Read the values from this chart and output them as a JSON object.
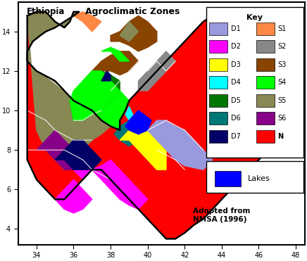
{
  "title": "Agroclimatic Zones",
  "title_left": "Ethiopia",
  "subtitle": "Adopted from\nNMSA (1996)",
  "legend_title": "Key",
  "legend_left": [
    {
      "label": "D1",
      "color": "#9999DD"
    },
    {
      "label": "D2",
      "color": "#FF00FF"
    },
    {
      "label": "D3",
      "color": "#FFFF00"
    },
    {
      "label": "D4",
      "color": "#00FFFF"
    },
    {
      "label": "D5",
      "color": "#007700"
    },
    {
      "label": "D6",
      "color": "#007777"
    },
    {
      "label": "D7",
      "color": "#000066"
    }
  ],
  "legend_right": [
    {
      "label": "S1",
      "color": "#FF8844"
    },
    {
      "label": "S2",
      "color": "#888888"
    },
    {
      "label": "S3",
      "color": "#884400"
    },
    {
      "label": "S4",
      "color": "#00FF00"
    },
    {
      "label": "S5",
      "color": "#888855"
    },
    {
      "label": "S6",
      "color": "#880088"
    },
    {
      "label": "N",
      "color": "#FF0000"
    }
  ],
  "lakes_color": "#0000FF",
  "xlim": [
    33.0,
    48.5
  ],
  "ylim": [
    3.2,
    15.5
  ],
  "xticks": [
    34,
    36,
    38,
    40,
    42,
    44,
    46,
    48
  ],
  "yticks": [
    4,
    6,
    8,
    10,
    12,
    14
  ],
  "figsize": [
    4.36,
    3.71
  ],
  "dpi": 100,
  "ethiopia_x": [
    33.5,
    34.0,
    34.5,
    35.0,
    35.5,
    35.8,
    36.0,
    36.3,
    36.0,
    35.5,
    35.0,
    34.5,
    34.2,
    33.8,
    33.5,
    33.5,
    34.0,
    35.0,
    35.5,
    36.0,
    37.0,
    37.5,
    38.0,
    38.5,
    38.5,
    38.8,
    39.0,
    39.5,
    40.0,
    40.5,
    41.0,
    41.5,
    42.0,
    42.5,
    43.0,
    43.5,
    44.0,
    44.5,
    44.8,
    45.0,
    45.5,
    46.0,
    46.5,
    47.0,
    47.5,
    47.8,
    47.5,
    47.0,
    46.5,
    46.0,
    45.5,
    45.0,
    44.5,
    44.0,
    43.5,
    43.0,
    42.5,
    42.0,
    41.5,
    41.0,
    40.5,
    40.0,
    39.5,
    39.0,
    38.5,
    38.0,
    37.5,
    37.0,
    36.5,
    36.0,
    35.5,
    35.0,
    34.5,
    34.0,
    33.5
  ],
  "ethiopia_y": [
    14.8,
    15.0,
    15.0,
    14.5,
    14.2,
    14.5,
    15.0,
    15.0,
    14.8,
    14.5,
    14.2,
    14.0,
    13.8,
    13.5,
    13.0,
    12.5,
    12.0,
    11.5,
    11.0,
    10.5,
    10.0,
    9.5,
    9.2,
    9.0,
    9.5,
    10.0,
    10.5,
    11.0,
    11.5,
    12.0,
    12.5,
    13.0,
    13.5,
    14.0,
    14.5,
    14.8,
    14.8,
    14.5,
    14.2,
    14.0,
    13.5,
    13.0,
    12.5,
    12.0,
    11.0,
    10.0,
    9.0,
    8.5,
    8.0,
    7.5,
    7.0,
    6.5,
    6.0,
    5.5,
    5.0,
    4.5,
    4.2,
    3.8,
    3.5,
    3.5,
    4.0,
    4.5,
    5.0,
    5.5,
    6.0,
    6.5,
    7.0,
    7.0,
    6.5,
    6.0,
    5.5,
    5.5,
    6.0,
    6.5,
    7.5
  ],
  "zones": {
    "N_east": {
      "color": "#FF0000",
      "x": [
        41.5,
        42.0,
        42.5,
        43.0,
        43.5,
        44.0,
        44.5,
        44.8,
        45.0,
        45.5,
        46.0,
        46.5,
        47.0,
        47.5,
        47.8,
        47.5,
        47.0,
        46.5,
        46.0,
        45.5,
        45.0,
        44.5,
        44.0,
        43.5,
        43.0,
        42.5,
        42.0,
        41.5
      ],
      "y": [
        12.5,
        13.0,
        13.5,
        14.0,
        14.5,
        14.8,
        14.5,
        14.2,
        14.0,
        13.5,
        13.0,
        12.5,
        12.0,
        11.0,
        10.0,
        9.0,
        8.5,
        8.0,
        7.5,
        7.0,
        6.5,
        6.0,
        5.5,
        5.0,
        4.5,
        4.2,
        3.8,
        12.5
      ]
    },
    "S5_west": {
      "color": "#888855",
      "x": [
        33.5,
        34.0,
        34.5,
        35.0,
        35.5,
        35.8,
        36.0,
        36.3,
        36.0,
        35.5,
        35.0,
        34.5,
        34.2,
        33.8,
        33.5,
        33.5,
        34.0,
        35.0,
        35.5,
        36.0,
        37.0,
        37.5,
        38.0,
        37.5,
        37.0,
        36.5,
        36.0,
        35.5,
        35.0,
        34.5,
        34.0,
        33.5
      ],
      "y": [
        14.8,
        15.0,
        15.0,
        14.5,
        14.2,
        14.5,
        15.0,
        15.0,
        14.8,
        14.5,
        14.2,
        14.0,
        13.8,
        13.5,
        13.0,
        12.5,
        12.0,
        11.5,
        11.0,
        10.5,
        10.0,
        9.5,
        9.2,
        8.8,
        8.5,
        8.0,
        7.5,
        7.0,
        7.5,
        8.0,
        9.0,
        14.8
      ]
    },
    "S4_green": {
      "color": "#00FF00",
      "x": [
        37.0,
        37.5,
        38.0,
        38.5,
        38.5,
        38.8,
        39.0,
        38.5,
        38.0,
        37.5,
        37.2,
        37.0,
        36.8,
        37.0
      ],
      "y": [
        10.0,
        9.5,
        9.2,
        9.0,
        9.5,
        10.0,
        10.5,
        11.0,
        11.5,
        12.0,
        11.5,
        11.0,
        10.5,
        10.0
      ]
    },
    "S3_brown": {
      "color": "#884400",
      "x": [
        37.0,
        37.5,
        38.0,
        38.5,
        39.0,
        39.5,
        39.0,
        38.5,
        38.0,
        37.5,
        37.0,
        36.8,
        37.0
      ],
      "y": [
        12.0,
        12.5,
        12.8,
        13.0,
        13.0,
        12.5,
        12.0,
        11.8,
        12.0,
        12.0,
        11.5,
        11.0,
        12.0
      ]
    },
    "S2_gray": {
      "color": "#888888",
      "x": [
        39.5,
        40.0,
        40.5,
        41.0,
        41.5,
        41.0,
        40.5,
        40.0,
        39.5,
        39.5
      ],
      "y": [
        11.5,
        12.0,
        12.5,
        13.0,
        12.5,
        12.0,
        11.5,
        11.0,
        11.0,
        11.5
      ]
    },
    "S1_orange": {
      "color": "#FF8844",
      "x": [
        36.0,
        36.5,
        37.0,
        37.5,
        37.0,
        36.5,
        36.0
      ],
      "y": [
        14.8,
        15.0,
        14.8,
        14.5,
        14.0,
        14.5,
        14.8
      ]
    },
    "S4b_green2": {
      "color": "#00FF00",
      "x": [
        37.5,
        38.0,
        38.5,
        39.0,
        38.5,
        38.0,
        37.5
      ],
      "y": [
        13.0,
        13.2,
        13.0,
        12.5,
        12.5,
        13.0,
        13.0
      ]
    },
    "S3b_brown2": {
      "color": "#884400",
      "x": [
        38.0,
        38.5,
        39.0,
        39.5,
        40.0,
        40.5,
        40.5,
        40.0,
        39.5,
        39.0,
        38.5,
        38.0,
        38.0
      ],
      "y": [
        13.5,
        13.5,
        13.3,
        13.0,
        13.2,
        13.5,
        14.0,
        14.5,
        14.8,
        14.5,
        14.0,
        13.8,
        13.5
      ]
    },
    "S5b_khaki": {
      "color": "#888855",
      "x": [
        38.5,
        39.0,
        39.5,
        39.0,
        38.5
      ],
      "y": [
        13.8,
        13.5,
        14.0,
        14.5,
        13.8
      ]
    },
    "D5_dkgreen": {
      "color": "#007700",
      "x": [
        36.5,
        37.0,
        37.5,
        38.0,
        38.5,
        38.5,
        38.0,
        37.5,
        37.0,
        36.5,
        36.0,
        35.8,
        36.5
      ],
      "y": [
        11.5,
        12.0,
        12.0,
        11.8,
        11.5,
        11.0,
        10.5,
        10.0,
        9.8,
        9.5,
        9.5,
        10.5,
        11.5
      ]
    },
    "S4c_green3": {
      "color": "#00FF00",
      "x": [
        36.0,
        36.5,
        37.0,
        37.5,
        38.0,
        38.5,
        38.0,
        37.5,
        37.0,
        36.5,
        36.0,
        35.8,
        36.0
      ],
      "y": [
        9.5,
        9.5,
        9.8,
        10.0,
        10.5,
        11.0,
        11.5,
        12.0,
        12.0,
        11.5,
        11.0,
        10.5,
        9.5
      ]
    },
    "D7_dkblue": {
      "color": "#000066",
      "x": [
        37.5,
        38.0,
        38.0,
        37.8,
        37.5
      ],
      "y": [
        11.5,
        11.5,
        11.8,
        12.0,
        11.5
      ]
    },
    "D4_cyan": {
      "color": "#00FFFF",
      "x": [
        38.8,
        39.0,
        39.2,
        39.0,
        38.8
      ],
      "y": [
        9.8,
        9.5,
        9.8,
        10.2,
        9.8
      ]
    },
    "D6_teal": {
      "color": "#007777",
      "x": [
        38.5,
        39.0,
        39.5,
        40.0,
        39.5,
        39.0,
        38.5,
        38.2,
        38.5
      ],
      "y": [
        8.5,
        8.2,
        8.5,
        8.8,
        9.2,
        9.5,
        9.2,
        8.8,
        8.5
      ]
    },
    "D3_yellow": {
      "color": "#FFFF00",
      "x": [
        39.0,
        39.5,
        40.0,
        40.5,
        41.0,
        41.0,
        40.5,
        40.0,
        39.5,
        39.0,
        38.5,
        39.0
      ],
      "y": [
        8.5,
        8.0,
        7.5,
        7.0,
        7.0,
        8.0,
        8.5,
        9.0,
        9.5,
        9.0,
        8.5,
        8.5
      ]
    },
    "D1_ltblue": {
      "color": "#9999DD",
      "x": [
        40.0,
        40.5,
        41.0,
        41.5,
        42.0,
        43.0,
        43.5,
        43.0,
        42.5,
        42.0,
        41.5,
        41.0,
        40.5,
        40.0,
        40.0
      ],
      "y": [
        9.0,
        8.5,
        8.0,
        7.5,
        7.2,
        7.0,
        7.5,
        8.0,
        8.5,
        9.0,
        9.2,
        9.5,
        9.5,
        9.0,
        9.0
      ]
    },
    "D2_magenta": {
      "color": "#FF00FF",
      "x": [
        36.5,
        37.0,
        37.5,
        38.0,
        38.5,
        39.0,
        39.5,
        40.0,
        39.5,
        39.0,
        38.5,
        38.0,
        37.5,
        37.0,
        36.5,
        36.0,
        36.5
      ],
      "y": [
        7.5,
        7.0,
        6.5,
        6.0,
        5.5,
        5.2,
        5.0,
        5.5,
        6.0,
        6.5,
        7.0,
        7.5,
        7.2,
        7.0,
        6.5,
        7.0,
        7.5
      ]
    },
    "S6_purple": {
      "color": "#880088",
      "x": [
        34.5,
        35.0,
        35.5,
        36.0,
        36.5,
        36.0,
        35.5,
        35.0,
        34.5,
        34.0,
        34.5
      ],
      "y": [
        8.0,
        7.5,
        7.0,
        7.0,
        7.5,
        8.0,
        8.5,
        9.0,
        8.5,
        8.0,
        8.0
      ]
    },
    "D2b_magenta2": {
      "color": "#FF00FF",
      "x": [
        35.0,
        35.5,
        36.0,
        36.5,
        37.0,
        36.5,
        36.0,
        35.5,
        35.0
      ],
      "y": [
        5.5,
        5.0,
        4.8,
        5.0,
        5.5,
        6.0,
        6.5,
        6.0,
        5.5
      ]
    },
    "D7b_dkblue2": {
      "color": "#000066",
      "x": [
        35.5,
        36.0,
        36.5,
        37.0,
        37.5,
        37.0,
        36.5,
        36.0,
        35.5,
        35.0,
        35.5
      ],
      "y": [
        7.5,
        7.0,
        7.0,
        7.0,
        7.5,
        8.0,
        8.5,
        8.5,
        8.0,
        7.5,
        7.5
      ]
    },
    "Lakes_blue": {
      "color": "#0000FF",
      "x": [
        38.8,
        39.0,
        39.5,
        40.0,
        40.2,
        39.8,
        39.5,
        39.0,
        38.8
      ],
      "y": [
        9.2,
        9.0,
        8.8,
        9.0,
        9.5,
        9.8,
        10.0,
        9.5,
        9.2
      ]
    }
  }
}
